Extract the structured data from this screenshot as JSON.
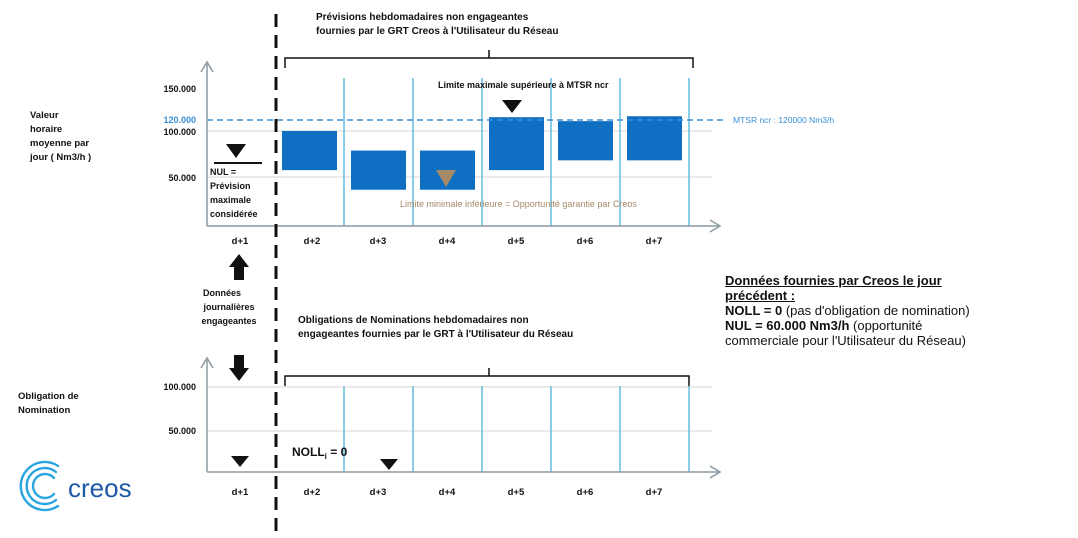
{
  "top": {
    "header_line1": "Prévisions hebdomadaires non engageantes",
    "header_line2": "fournies par le GRT Creos à l'Utilisateur du Réseau",
    "ylabel": [
      "Valeur",
      "horaire",
      "moyenne par",
      "jour ( Nm3/h )"
    ],
    "mtsr_label": "MTSR  ncr : 120000 Nm3/h",
    "limit_max_label": "Limite maximale  supérieure à MTSR  ncr",
    "limit_min_label": "Limite  minimale  inférieure = Opportunité  garantie par Creos",
    "nul_block": [
      "NUL =",
      "Prévision",
      "maximale",
      "considérée"
    ]
  },
  "middle": {
    "daily_data": [
      "Données",
      "journalières",
      "engageantes"
    ]
  },
  "bottom": {
    "header_line1": "Obligations de Nominations hebdomadaires non",
    "header_line2": "engageantes fournies par le GRT à l'Utilisateur du Réseau",
    "ylabel": [
      "Obligation de",
      "Nomination"
    ],
    "noll_text": "NOLL",
    "noll_sub": "i",
    "noll_value": " = 0"
  },
  "right_panel": {
    "heading1": "Données fournies par Creos le jour",
    "heading2": "précédent :",
    "line1_bold": "NOLL = 0",
    "line1_rest": " (pas d'obligation de nomination)",
    "line2_bold": "NUL = 60.000  Nm3/h",
    "line2_rest": " (opportunité",
    "line3": "commerciale pour l'Utilisateur du Réseau)"
  },
  "logo": {
    "text": "creos"
  },
  "colors": {
    "bar": "#0f6fc2",
    "day_line": "#5ab7dd",
    "mtsr_line": "#3a8fd6",
    "axis": "#8a9aa0",
    "triangle_min": "#a48a68",
    "creos_blue": "#2aa5e0"
  },
  "chart_data": [
    {
      "type": "bar",
      "title": "Prévisions hebdomadaires non engageantes fournies par le GRT Creos à l'Utilisateur du Réseau",
      "ylabel": "Valeur horaire moyenne par jour ( Nm3/h )",
      "categories": [
        "d+1",
        "d+2",
        "d+3",
        "d+4",
        "d+5",
        "d+6",
        "d+7"
      ],
      "yticks": [
        "50.000",
        "100.000",
        "120.000",
        "150.000"
      ],
      "ylim": [
        0,
        160000
      ],
      "ranges": [
        {
          "day": "d+2",
          "low": 57000,
          "high": 97000
        },
        {
          "day": "d+3",
          "low": 37000,
          "high": 77000
        },
        {
          "day": "d+4",
          "low": 37000,
          "high": 77000
        },
        {
          "day": "d+5",
          "low": 57000,
          "high": 111000
        },
        {
          "day": "d+6",
          "low": 67000,
          "high": 107000
        },
        {
          "day": "d+7",
          "low": 67000,
          "high": 112000
        }
      ],
      "mtsr": 120000,
      "nul_day1": 60000,
      "grid": true
    },
    {
      "type": "line",
      "title": "Obligations de Nominations hebdomadaires non engageantes fournies par le GRT à l'Utilisateur du Réseau",
      "ylabel": "Obligation de Nomination",
      "categories": [
        "d+1",
        "d+2",
        "d+3",
        "d+4",
        "d+5",
        "d+6",
        "d+7"
      ],
      "yticks": [
        "50.000",
        "100.000"
      ],
      "ylim": [
        0,
        140000
      ],
      "markers": [
        {
          "day": "d+1",
          "value": 0
        },
        {
          "day": "d+3",
          "value": 0
        }
      ],
      "grid": true
    }
  ]
}
